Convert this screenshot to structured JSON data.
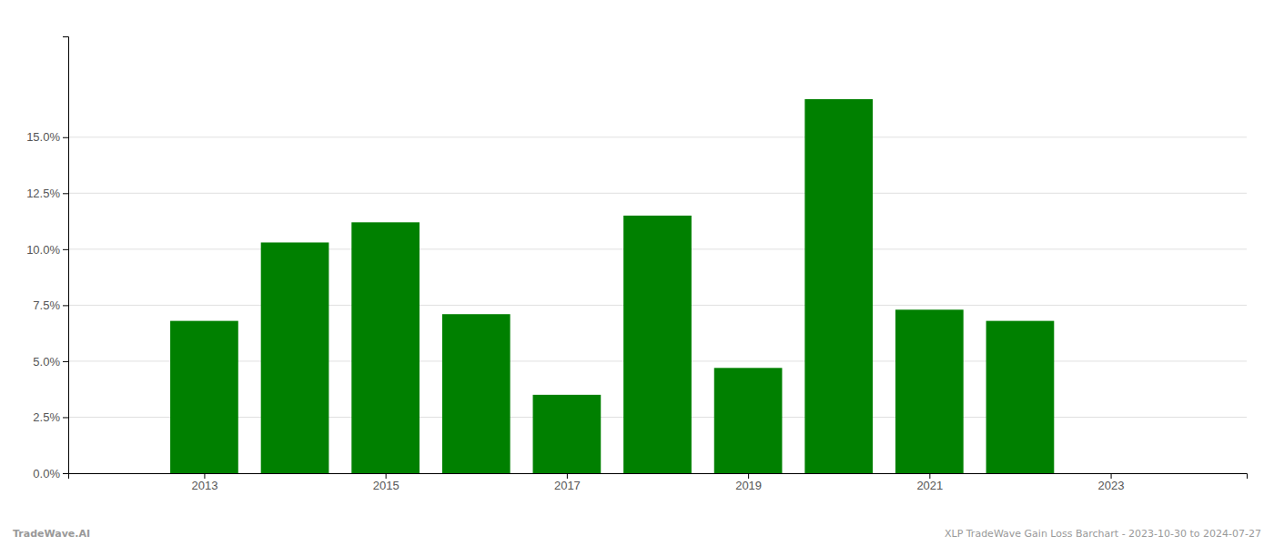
{
  "chart_data": {
    "type": "bar",
    "x": [
      2013,
      2014,
      2015,
      2016,
      2017,
      2018,
      2019,
      2020,
      2021,
      2022
    ],
    "values": [
      0.068,
      0.103,
      0.112,
      0.071,
      0.035,
      0.115,
      0.047,
      0.167,
      0.073,
      0.068
    ],
    "color": "#008000",
    "xlim": [
      2011.5,
      2024.5
    ],
    "xticks": [
      2013,
      2015,
      2017,
      2019,
      2021,
      2023
    ],
    "ylim": [
      0,
      0.195
    ],
    "yticks": [
      {
        "value": 0.0,
        "label": "0.0%"
      },
      {
        "value": 0.025,
        "label": "2.5%"
      },
      {
        "value": 0.05,
        "label": "5.0%"
      },
      {
        "value": 0.075,
        "label": "7.5%"
      },
      {
        "value": 0.1,
        "label": "10.0%"
      },
      {
        "value": 0.125,
        "label": "12.5%"
      },
      {
        "value": 0.15,
        "label": "15.0%"
      }
    ],
    "grid": true,
    "annotations": [
      "TradeWave.AI",
      "XLP TradeWave Gain Loss Barchart - 2023-10-30 to 2024-07-27"
    ]
  }
}
